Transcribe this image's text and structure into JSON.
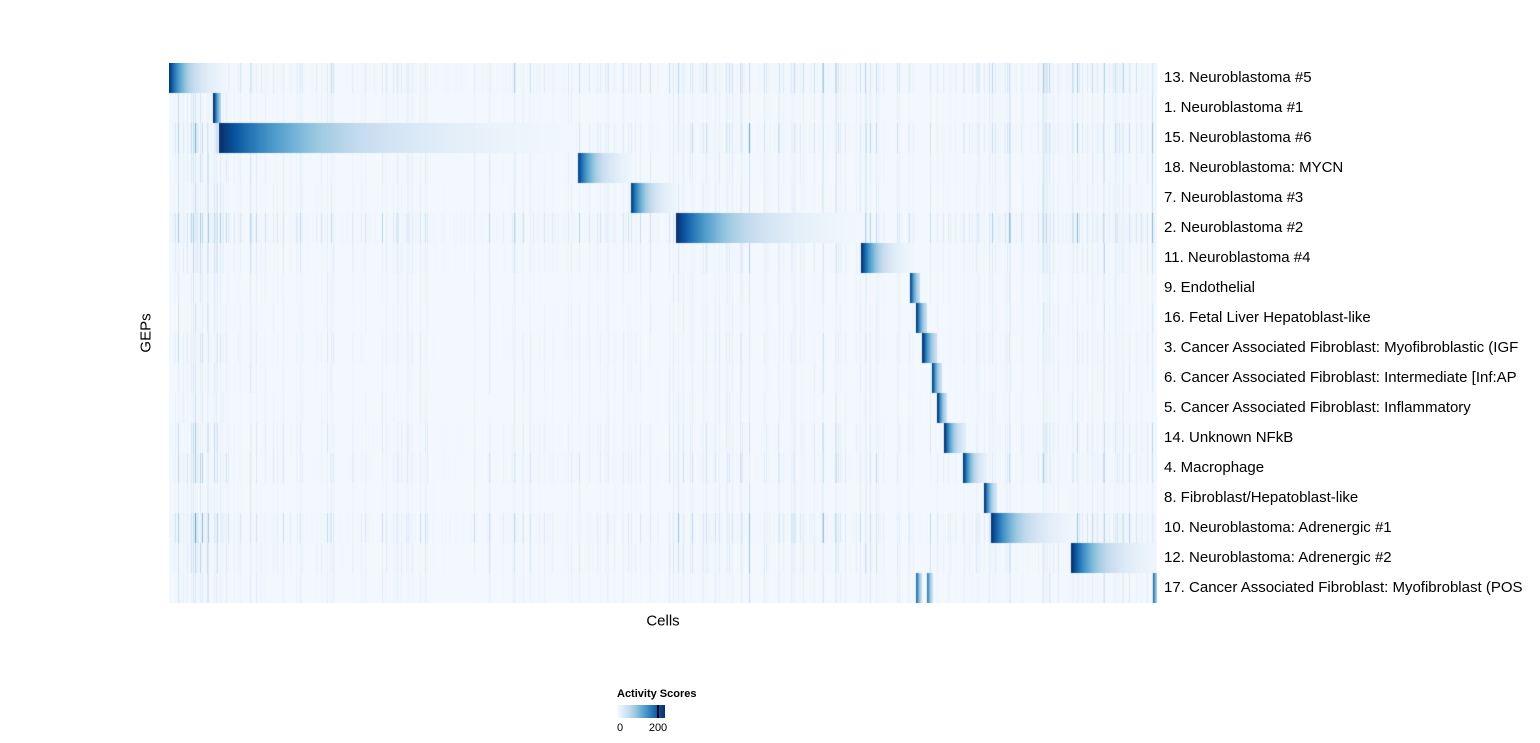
{
  "chart_data": {
    "type": "heatmap",
    "xlabel": "Cells",
    "ylabel": "GEPs",
    "colormap": "Blues",
    "colormap_stops": [
      "#f7fbff",
      "#deebf7",
      "#c6dbef",
      "#9ecae1",
      "#6baed6",
      "#4292c6",
      "#2171b5",
      "#08519c",
      "#08306b"
    ],
    "colorbar": {
      "title": "Activity Scores",
      "tick_labels": [
        "0",
        "200"
      ],
      "tick_values": [
        0,
        200
      ]
    },
    "noise_bands": [
      {
        "start": 0.0,
        "end": 0.06,
        "mult": 2.0
      },
      {
        "start": 0.51,
        "end": 0.59,
        "mult": 1.9
      },
      {
        "start": 0.6,
        "end": 0.7,
        "mult": 1.3
      },
      {
        "start": 0.83,
        "end": 1.0,
        "mult": 1.5
      }
    ],
    "rows": [
      {
        "label": "13. Neuroblastoma #5",
        "noise": 0.85,
        "segments": [
          {
            "start": 0.0,
            "end": 0.058,
            "peak": 1.0,
            "decay": 3.2
          }
        ]
      },
      {
        "label": "1. Neuroblastoma #1",
        "noise": 0.35,
        "segments": [
          {
            "start": 0.0455,
            "end": 0.0525,
            "peak": 1.0,
            "decay": 1.2
          }
        ]
      },
      {
        "label": "15. Neuroblastoma #6",
        "noise": 0.75,
        "segments": [
          {
            "start": 0.0515,
            "end": 0.411,
            "peak": 1.0,
            "decay": 3.5
          }
        ]
      },
      {
        "label": "18. Neuroblastoma: MYCN",
        "noise": 0.4,
        "segments": [
          {
            "start": 0.414,
            "end": 0.468,
            "peak": 0.95,
            "decay": 3.0
          }
        ]
      },
      {
        "label": "7. Neuroblastoma #3",
        "noise": 0.4,
        "segments": [
          {
            "start": 0.468,
            "end": 0.5135,
            "peak": 0.95,
            "decay": 3.0
          }
        ]
      },
      {
        "label": "2. Neuroblastoma #2",
        "noise": 1.0,
        "segments": [
          {
            "start": 0.5135,
            "end": 0.701,
            "peak": 1.0,
            "decay": 3.5
          }
        ]
      },
      {
        "label": "11. Neuroblastoma #4",
        "noise": 0.5,
        "segments": [
          {
            "start": 0.701,
            "end": 0.748,
            "peak": 1.0,
            "decay": 3.0
          }
        ]
      },
      {
        "label": "9. Endothelial",
        "noise": 0.3,
        "segments": [
          {
            "start": 0.75,
            "end": 0.76,
            "peak": 1.0,
            "decay": 1.5
          }
        ]
      },
      {
        "label": "16. Fetal Liver Hepatoblast-like",
        "noise": 0.3,
        "segments": [
          {
            "start": 0.7565,
            "end": 0.767,
            "peak": 1.0,
            "decay": 1.5
          }
        ]
      },
      {
        "label": "3. Cancer Associated Fibroblast: Myofibroblastic (IGF",
        "noise": 0.4,
        "segments": [
          {
            "start": 0.763,
            "end": 0.777,
            "peak": 1.0,
            "decay": 1.5
          }
        ]
      },
      {
        "label": "6. Cancer Associated Fibroblast: Intermediate [Inf:AP",
        "noise": 0.3,
        "segments": [
          {
            "start": 0.7725,
            "end": 0.7815,
            "peak": 1.0,
            "decay": 1.5
          }
        ]
      },
      {
        "label": "5. Cancer Associated Fibroblast: Inflammatory",
        "noise": 0.3,
        "segments": [
          {
            "start": 0.778,
            "end": 0.787,
            "peak": 1.0,
            "decay": 1.5
          }
        ]
      },
      {
        "label": "14. Unknown NFkB",
        "noise": 0.5,
        "segments": [
          {
            "start": 0.785,
            "end": 0.806,
            "peak": 1.0,
            "decay": 2.2
          }
        ]
      },
      {
        "label": "4. Macrophage",
        "noise": 0.6,
        "segments": [
          {
            "start": 0.804,
            "end": 0.827,
            "peak": 1.0,
            "decay": 2.5
          }
        ]
      },
      {
        "label": "8. Fibroblast/Hepatoblast-like",
        "noise": 0.3,
        "segments": [
          {
            "start": 0.8255,
            "end": 0.838,
            "peak": 1.0,
            "decay": 1.8
          }
        ]
      },
      {
        "label": "10. Neuroblastoma: Adrenergic #1",
        "noise": 0.85,
        "segments": [
          {
            "start": 0.832,
            "end": 0.917,
            "peak": 1.0,
            "decay": 3.2
          }
        ]
      },
      {
        "label": "12. Neuroblastoma: Adrenergic #2",
        "noise": 0.55,
        "segments": [
          {
            "start": 0.9135,
            "end": 1.0,
            "peak": 1.0,
            "decay": 3.2
          }
        ]
      },
      {
        "label": "17. Cancer Associated Fibroblast: Myofibroblast (POS",
        "noise": 0.35,
        "segments": [
          {
            "start": 0.757,
            "end": 0.762,
            "peak": 0.75,
            "decay": 1.2
          },
          {
            "start": 0.768,
            "end": 0.773,
            "peak": 0.7,
            "decay": 1.2
          },
          {
            "start": 0.996,
            "end": 1.0,
            "peak": 0.85,
            "decay": 1.0
          }
        ]
      }
    ]
  }
}
